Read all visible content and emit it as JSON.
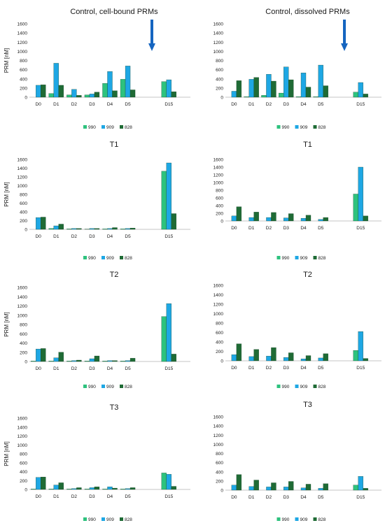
{
  "colors": {
    "990": "#2ec27e",
    "909": "#1ea7e4",
    "828": "#1f6b35",
    "arrow": "#1565c0",
    "axis": "#b0b0b0"
  },
  "chart_data": [
    {
      "type": "bar",
      "title": "Control, cell-bound PRMs",
      "ylabel": "PRM [nM]",
      "categories": [
        "D0",
        "D1",
        "D2",
        "D3",
        "D4",
        "D5",
        "D15"
      ],
      "ylim": [
        0,
        1600
      ],
      "yticks": [
        "0",
        "200",
        "400",
        "600",
        "800",
        "1000",
        "1200",
        "1400",
        "1600"
      ],
      "annotation": "arrow",
      "grid": false,
      "legend_position": "bottom",
      "series": [
        {
          "name": "990",
          "values": [
            0,
            80,
            50,
            50,
            300,
            390,
            340
          ]
        },
        {
          "name": "909",
          "values": [
            260,
            740,
            170,
            70,
            560,
            680,
            380
          ]
        },
        {
          "name": "828",
          "values": [
            270,
            260,
            40,
            110,
            140,
            160,
            120
          ]
        }
      ]
    },
    {
      "type": "bar",
      "title": "Control, dissolved PRMs",
      "ylabel": "",
      "categories": [
        "D0",
        "D1",
        "D2",
        "D3",
        "D4",
        "D5",
        "D15"
      ],
      "ylim": [
        0,
        1600
      ],
      "yticks": [
        "0",
        "200",
        "400",
        "600",
        "800",
        "1000",
        "1200",
        "1400",
        "1600"
      ],
      "annotation": "arrow",
      "grid": false,
      "legend_position": "bottom",
      "series": [
        {
          "name": "990",
          "values": [
            0,
            10,
            40,
            90,
            10,
            10,
            110
          ]
        },
        {
          "name": "909",
          "values": [
            130,
            390,
            500,
            660,
            530,
            700,
            320
          ]
        },
        {
          "name": "828",
          "values": [
            360,
            430,
            350,
            380,
            220,
            250,
            70
          ]
        }
      ]
    },
    {
      "type": "bar",
      "title": "T1",
      "ylabel": "PRM [nM]",
      "categories": [
        "D0",
        "D1",
        "D2",
        "D3",
        "D4",
        "D5",
        "D15"
      ],
      "ylim": [
        0,
        1600
      ],
      "yticks": [
        "0",
        "200",
        "400",
        "600",
        "800",
        "1000",
        "1200",
        "1400",
        "1600"
      ],
      "grid": false,
      "legend_position": "bottom",
      "series": [
        {
          "name": "990",
          "values": [
            0,
            20,
            10,
            5,
            10,
            10,
            1330
          ]
        },
        {
          "name": "909",
          "values": [
            270,
            80,
            20,
            20,
            20,
            20,
            1520
          ]
        },
        {
          "name": "828",
          "values": [
            280,
            120,
            20,
            20,
            40,
            30,
            360
          ]
        }
      ]
    },
    {
      "type": "bar",
      "title": "T1",
      "ylabel": "",
      "categories": [
        "D0",
        "D1",
        "D2",
        "D3",
        "D4",
        "D5",
        "D15"
      ],
      "ylim": [
        0,
        1600
      ],
      "yticks": [
        "0",
        "200",
        "400",
        "600",
        "800",
        "1000",
        "1200",
        "1400",
        "1600"
      ],
      "grid": false,
      "legend_position": "bottom",
      "series": [
        {
          "name": "990",
          "values": [
            0,
            0,
            0,
            0,
            0,
            0,
            700
          ]
        },
        {
          "name": "909",
          "values": [
            130,
            90,
            90,
            80,
            70,
            40,
            1400
          ]
        },
        {
          "name": "828",
          "values": [
            370,
            230,
            220,
            190,
            150,
            90,
            130
          ]
        }
      ]
    },
    {
      "type": "bar",
      "title": "T2",
      "ylabel": "PRM [nM]",
      "categories": [
        "D0",
        "D1",
        "D2",
        "D3",
        "D4",
        "D5",
        "D15"
      ],
      "ylim": [
        0,
        1600
      ],
      "yticks": [
        "0",
        "200",
        "400",
        "600",
        "800",
        "1000",
        "1200",
        "1400",
        "1600"
      ],
      "grid": false,
      "legend_position": "bottom",
      "series": [
        {
          "name": "990",
          "values": [
            10,
            10,
            10,
            10,
            10,
            10,
            970
          ]
        },
        {
          "name": "909",
          "values": [
            270,
            80,
            20,
            60,
            20,
            20,
            1250
          ]
        },
        {
          "name": "828",
          "values": [
            280,
            200,
            30,
            120,
            20,
            70,
            160
          ]
        }
      ]
    },
    {
      "type": "bar",
      "title": "T2",
      "ylabel": "",
      "categories": [
        "D0",
        "D1",
        "D2",
        "D3",
        "D4",
        "D5",
        "D15"
      ],
      "ylim": [
        0,
        1600
      ],
      "yticks": [
        "0",
        "200",
        "400",
        "600",
        "800",
        "1000",
        "1200",
        "1400",
        "1600"
      ],
      "grid": false,
      "legend_position": "bottom",
      "series": [
        {
          "name": "990",
          "values": [
            0,
            0,
            0,
            0,
            0,
            0,
            220
          ]
        },
        {
          "name": "909",
          "values": [
            130,
            90,
            100,
            70,
            40,
            60,
            620
          ]
        },
        {
          "name": "828",
          "values": [
            360,
            240,
            280,
            170,
            110,
            150,
            50
          ]
        }
      ]
    },
    {
      "type": "bar",
      "title": "T3",
      "ylabel": "PRM [nM]",
      "categories": [
        "D0",
        "D1",
        "D2",
        "D3",
        "D4",
        "D5",
        "D15"
      ],
      "ylim": [
        0,
        1600
      ],
      "yticks": [
        "0",
        "200",
        "400",
        "600",
        "800",
        "1000",
        "1200",
        "1400",
        "1600"
      ],
      "grid": false,
      "legend_position": "bottom",
      "series": [
        {
          "name": "990",
          "values": [
            10,
            10,
            10,
            10,
            10,
            10,
            370
          ]
        },
        {
          "name": "909",
          "values": [
            270,
            100,
            20,
            40,
            60,
            20,
            340
          ]
        },
        {
          "name": "828",
          "values": [
            280,
            150,
            40,
            60,
            30,
            40,
            70
          ]
        }
      ]
    },
    {
      "type": "bar",
      "title": "T3",
      "ylabel": "",
      "categories": [
        "D0",
        "D1",
        "D2",
        "D3",
        "D4",
        "D5",
        "D15"
      ],
      "ylim": [
        0,
        1600
      ],
      "yticks": [
        "0",
        "200",
        "400",
        "600",
        "800",
        "1000",
        "1200",
        "1400",
        "1600"
      ],
      "grid": false,
      "legend_position": "bottom",
      "series": [
        {
          "name": "990",
          "values": [
            0,
            0,
            0,
            0,
            0,
            0,
            110
          ]
        },
        {
          "name": "909",
          "values": [
            110,
            80,
            70,
            70,
            50,
            40,
            300
          ]
        },
        {
          "name": "828",
          "values": [
            340,
            220,
            160,
            190,
            130,
            140,
            40
          ]
        }
      ]
    }
  ]
}
